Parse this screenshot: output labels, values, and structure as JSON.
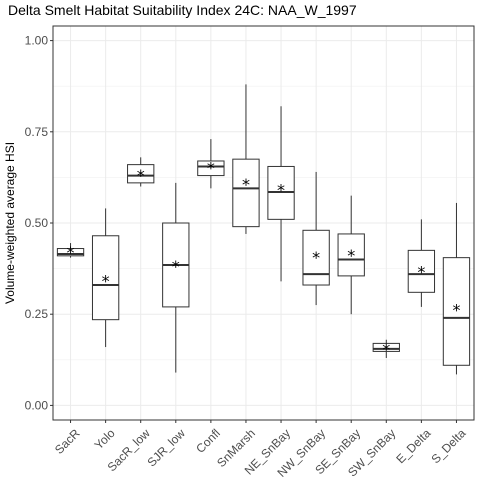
{
  "chart_data": {
    "type": "box",
    "title": "Delta Smelt Habitat Suitability Index 24C: NAA_W_1997",
    "xlabel": "",
    "ylabel": "Volume-weighted average HSI",
    "ylim": [
      -0.04,
      1.04
    ],
    "yticks": [
      0.0,
      0.25,
      0.5,
      0.75,
      1.0
    ],
    "ytick_labels": [
      "0.00",
      "0.25",
      "0.50",
      "0.75",
      "1.00"
    ],
    "grid": true,
    "mean_marker": "*",
    "categories": [
      "SacR",
      "Yolo",
      "SacR_low",
      "SJR_low",
      "Confl",
      "SnMarsh",
      "NE_SnBay",
      "NW_SnBay",
      "SE_SnBay",
      "SW_SnBay",
      "E_Delta",
      "S_Delta"
    ],
    "boxes": [
      {
        "min": 0.405,
        "q1": 0.41,
        "median": 0.415,
        "q3": 0.43,
        "max": 0.445,
        "mean": 0.423
      },
      {
        "min": 0.16,
        "q1": 0.235,
        "median": 0.33,
        "q3": 0.465,
        "max": 0.54,
        "mean": 0.345
      },
      {
        "min": 0.6,
        "q1": 0.61,
        "median": 0.63,
        "q3": 0.66,
        "max": 0.68,
        "mean": 0.635
      },
      {
        "min": 0.09,
        "q1": 0.27,
        "median": 0.385,
        "q3": 0.5,
        "max": 0.61,
        "mean": 0.385
      },
      {
        "min": 0.595,
        "q1": 0.63,
        "median": 0.655,
        "q3": 0.67,
        "max": 0.73,
        "mean": 0.655
      },
      {
        "min": 0.47,
        "q1": 0.49,
        "median": 0.595,
        "q3": 0.675,
        "max": 0.88,
        "mean": 0.61
      },
      {
        "min": 0.34,
        "q1": 0.51,
        "median": 0.585,
        "q3": 0.655,
        "max": 0.82,
        "mean": 0.595
      },
      {
        "min": 0.275,
        "q1": 0.33,
        "median": 0.36,
        "q3": 0.48,
        "max": 0.64,
        "mean": 0.41
      },
      {
        "min": 0.25,
        "q1": 0.355,
        "median": 0.4,
        "q3": 0.47,
        "max": 0.575,
        "mean": 0.415
      },
      {
        "min": 0.13,
        "q1": 0.148,
        "median": 0.155,
        "q3": 0.17,
        "max": 0.18,
        "mean": 0.157
      },
      {
        "min": 0.27,
        "q1": 0.31,
        "median": 0.36,
        "q3": 0.425,
        "max": 0.51,
        "mean": 0.37
      },
      {
        "min": 0.085,
        "q1": 0.11,
        "median": 0.24,
        "q3": 0.405,
        "max": 0.555,
        "mean": 0.265
      }
    ]
  }
}
